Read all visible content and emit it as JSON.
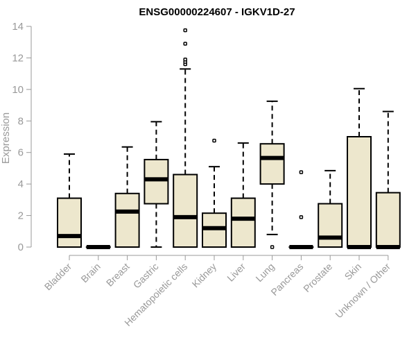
{
  "chart_data": {
    "type": "box",
    "title": "ENSG00000224607 - IGKV1D-27",
    "ylabel": "Expression",
    "ylim": [
      0,
      14
    ],
    "yticks": [
      0,
      2,
      4,
      6,
      8,
      10,
      12,
      14
    ],
    "grid": false,
    "colors": {
      "box_fill": "#ede7cd",
      "box_stroke": "#000000",
      "axis": "#999999",
      "title": "#000000"
    },
    "categories": [
      "Bladder",
      "Brain",
      "Breast",
      "Gastric",
      "Hematopoietic cells",
      "Kidney",
      "Liver",
      "Lung",
      "Pancreas",
      "Prostate",
      "Skin",
      "Unknown / Other"
    ],
    "boxes": [
      {
        "min": 0,
        "q1": 0,
        "median": 0.7,
        "q3": 3.1,
        "max": 5.9,
        "outliers": []
      },
      {
        "min": 0,
        "q1": 0,
        "median": 0,
        "q3": 0,
        "max": 0,
        "outliers": []
      },
      {
        "min": 0,
        "q1": 0,
        "median": 2.25,
        "q3": 3.4,
        "max": 6.35,
        "outliers": []
      },
      {
        "min": 0,
        "q1": 2.75,
        "median": 4.3,
        "q3": 5.55,
        "max": 7.95,
        "outliers": []
      },
      {
        "min": 0,
        "q1": 0,
        "median": 1.9,
        "q3": 4.6,
        "max": 11.3,
        "outliers": [
          11.6,
          11.75,
          11.9,
          12.9,
          13.75
        ]
      },
      {
        "min": 0,
        "q1": 0,
        "median": 1.2,
        "q3": 2.15,
        "max": 5.1,
        "outliers": [
          6.75
        ]
      },
      {
        "min": 0,
        "q1": 0,
        "median": 1.8,
        "q3": 3.1,
        "max": 6.6,
        "outliers": []
      },
      {
        "min": 0.8,
        "q1": 4.0,
        "median": 5.65,
        "q3": 6.55,
        "max": 9.25,
        "outliers": [
          0
        ]
      },
      {
        "min": 0,
        "q1": 0,
        "median": 0,
        "q3": 0,
        "max": 0,
        "outliers": [
          1.9,
          4.75
        ]
      },
      {
        "min": 0,
        "q1": 0,
        "median": 0.6,
        "q3": 2.75,
        "max": 4.85,
        "outliers": []
      },
      {
        "min": 0,
        "q1": 0,
        "median": 0,
        "q3": 7.0,
        "max": 10.05,
        "outliers": []
      },
      {
        "min": 0,
        "q1": 0,
        "median": 0,
        "q3": 3.45,
        "max": 8.6,
        "outliers": []
      }
    ]
  }
}
